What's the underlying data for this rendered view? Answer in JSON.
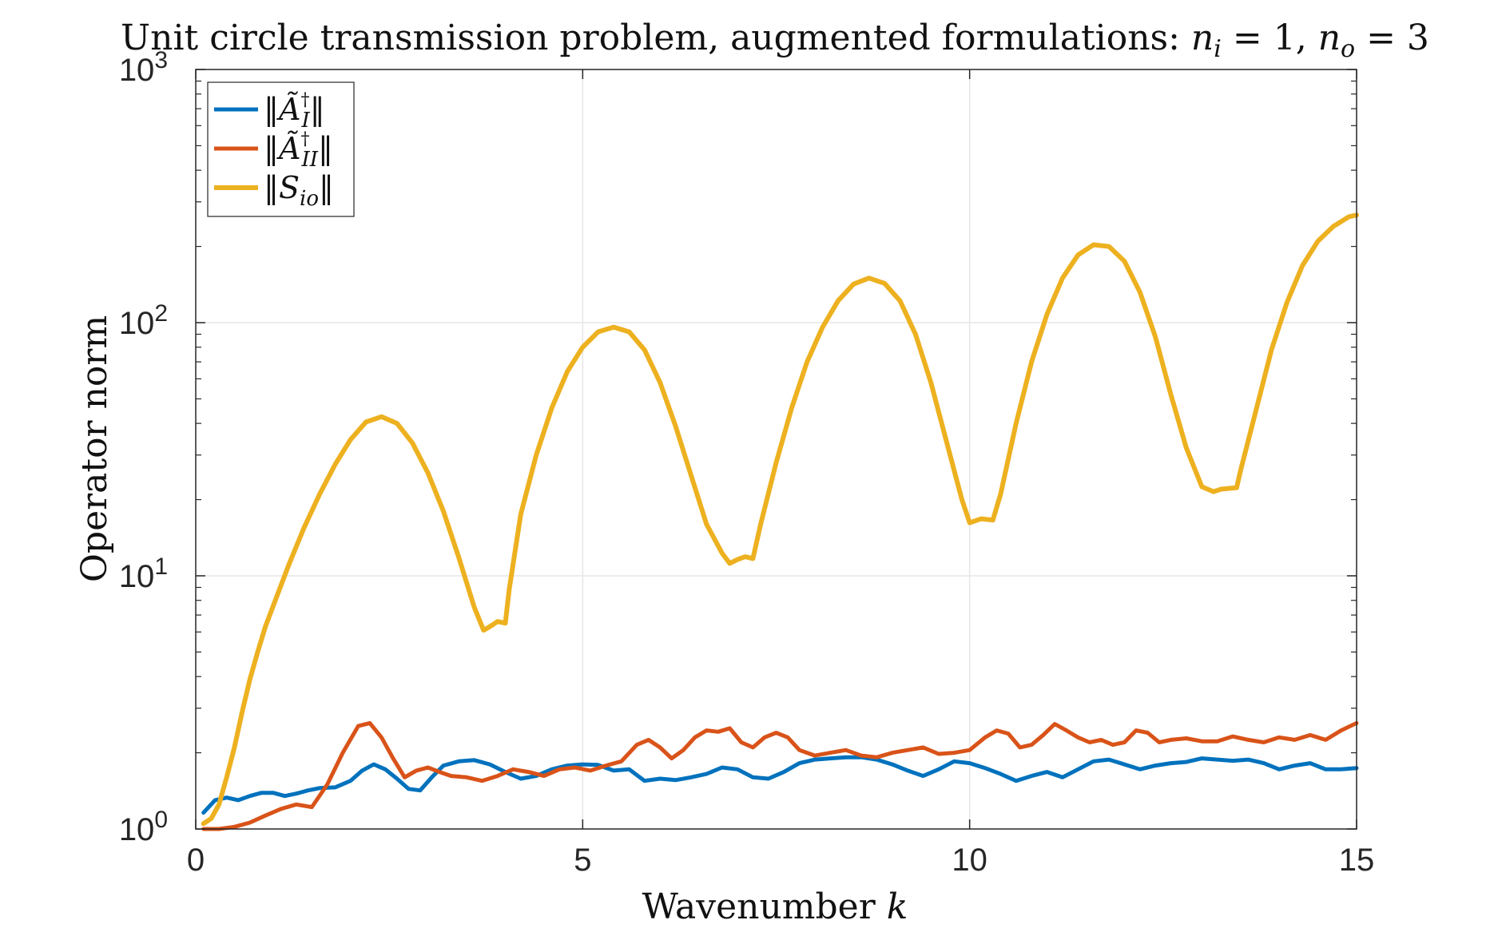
{
  "chart_data": {
    "type": "line",
    "title": "Unit circle transmission problem, augmented formulations: n_i = 1, n_o = 3",
    "title_parts": {
      "prefix": "Unit circle transmission problem, augmented formulations: ",
      "n_sym": "n",
      "sub_i": "i",
      "eq_one": " = 1, ",
      "sub_o": "o",
      "eq_three": " = 3"
    },
    "xlabel": "Wavenumber",
    "xlabel_var": "k",
    "ylabel": "Operator norm",
    "xlim": [
      0,
      15
    ],
    "ylim": [
      1,
      1000
    ],
    "yscale": "log",
    "grid": true,
    "legend_position": "top-left",
    "x_ticks": [
      {
        "value": 0,
        "label": "0"
      },
      {
        "value": 5,
        "label": "5"
      },
      {
        "value": 10,
        "label": "10"
      },
      {
        "value": 15,
        "label": "15"
      }
    ],
    "y_ticks": [
      {
        "value": 1,
        "base": "10",
        "exp": "0"
      },
      {
        "value": 10,
        "base": "10",
        "exp": "1"
      },
      {
        "value": 100,
        "base": "10",
        "exp": "2"
      },
      {
        "value": 1000,
        "base": "10",
        "exp": "3"
      }
    ],
    "series": [
      {
        "name": "‖Ã_I^†‖",
        "legend": {
          "left": "‖",
          "base": "Ã",
          "sup": "†",
          "sub": "I",
          "right": "‖"
        },
        "color": "#0072BD",
        "x": [
          0.1,
          0.25,
          0.4,
          0.55,
          0.7,
          0.85,
          1.0,
          1.15,
          1.3,
          1.45,
          1.6,
          1.8,
          2.0,
          2.15,
          2.3,
          2.45,
          2.6,
          2.75,
          2.9,
          3.05,
          3.2,
          3.4,
          3.6,
          3.8,
          4.0,
          4.2,
          4.4,
          4.6,
          4.8,
          5.0,
          5.2,
          5.4,
          5.6,
          5.8,
          6.0,
          6.2,
          6.4,
          6.6,
          6.8,
          7.0,
          7.2,
          7.4,
          7.6,
          7.8,
          8.0,
          8.2,
          8.4,
          8.6,
          8.8,
          9.0,
          9.2,
          9.4,
          9.6,
          9.8,
          10.0,
          10.2,
          10.4,
          10.6,
          10.8,
          11.0,
          11.2,
          11.4,
          11.6,
          11.8,
          12.0,
          12.2,
          12.4,
          12.6,
          12.8,
          13.0,
          13.2,
          13.4,
          13.6,
          13.8,
          14.0,
          14.2,
          14.4,
          14.6,
          14.8,
          15.0
        ],
        "y": [
          1.16,
          1.3,
          1.33,
          1.3,
          1.35,
          1.39,
          1.39,
          1.35,
          1.38,
          1.42,
          1.45,
          1.46,
          1.55,
          1.7,
          1.8,
          1.72,
          1.58,
          1.44,
          1.42,
          1.6,
          1.78,
          1.85,
          1.87,
          1.8,
          1.68,
          1.58,
          1.62,
          1.72,
          1.78,
          1.8,
          1.79,
          1.7,
          1.72,
          1.55,
          1.58,
          1.56,
          1.6,
          1.65,
          1.75,
          1.72,
          1.6,
          1.58,
          1.68,
          1.82,
          1.88,
          1.9,
          1.92,
          1.92,
          1.88,
          1.8,
          1.7,
          1.62,
          1.72,
          1.85,
          1.82,
          1.74,
          1.65,
          1.55,
          1.62,
          1.68,
          1.6,
          1.72,
          1.85,
          1.88,
          1.8,
          1.72,
          1.78,
          1.82,
          1.84,
          1.9,
          1.88,
          1.86,
          1.88,
          1.82,
          1.72,
          1.78,
          1.82,
          1.72,
          1.72,
          1.74
        ]
      },
      {
        "name": "‖Ã_II^†‖",
        "legend": {
          "left": "‖",
          "base": "Ã",
          "sup": "†",
          "sub": "II",
          "right": "‖"
        },
        "color": "#D95319",
        "x": [
          0.1,
          0.3,
          0.5,
          0.7,
          0.9,
          1.1,
          1.3,
          1.5,
          1.7,
          1.9,
          2.1,
          2.25,
          2.4,
          2.55,
          2.7,
          2.85,
          3.0,
          3.15,
          3.3,
          3.5,
          3.7,
          3.9,
          4.1,
          4.3,
          4.5,
          4.7,
          4.9,
          5.1,
          5.3,
          5.5,
          5.7,
          5.85,
          6.0,
          6.15,
          6.3,
          6.45,
          6.6,
          6.75,
          6.9,
          7.05,
          7.2,
          7.35,
          7.5,
          7.65,
          7.8,
          8.0,
          8.2,
          8.4,
          8.6,
          8.8,
          9.0,
          9.2,
          9.4,
          9.6,
          9.8,
          10.0,
          10.2,
          10.35,
          10.5,
          10.65,
          10.8,
          10.95,
          11.1,
          11.25,
          11.4,
          11.55,
          11.7,
          11.85,
          12.0,
          12.15,
          12.3,
          12.45,
          12.6,
          12.8,
          13.0,
          13.2,
          13.4,
          13.6,
          13.8,
          14.0,
          14.2,
          14.4,
          14.6,
          14.8,
          15.0
        ],
        "y": [
          1.0,
          1.0,
          1.02,
          1.06,
          1.13,
          1.2,
          1.25,
          1.22,
          1.5,
          2.0,
          2.55,
          2.62,
          2.3,
          1.9,
          1.6,
          1.7,
          1.75,
          1.68,
          1.62,
          1.6,
          1.55,
          1.62,
          1.72,
          1.68,
          1.62,
          1.72,
          1.75,
          1.7,
          1.78,
          1.85,
          2.15,
          2.25,
          2.1,
          1.9,
          2.05,
          2.3,
          2.45,
          2.42,
          2.5,
          2.2,
          2.1,
          2.3,
          2.4,
          2.3,
          2.05,
          1.95,
          2.0,
          2.05,
          1.95,
          1.92,
          2.0,
          2.05,
          2.1,
          1.98,
          2.0,
          2.05,
          2.3,
          2.45,
          2.38,
          2.1,
          2.15,
          2.35,
          2.6,
          2.45,
          2.3,
          2.2,
          2.25,
          2.15,
          2.2,
          2.45,
          2.4,
          2.2,
          2.25,
          2.28,
          2.22,
          2.22,
          2.32,
          2.25,
          2.2,
          2.3,
          2.25,
          2.35,
          2.25,
          2.45,
          2.62
        ]
      },
      {
        "name": "‖S_io‖",
        "legend": {
          "left": "‖",
          "base": "S",
          "sup": "",
          "sub": "io",
          "right": "‖"
        },
        "color": "#EDB120",
        "x": [
          0.1,
          0.2,
          0.3,
          0.4,
          0.5,
          0.6,
          0.7,
          0.8,
          0.9,
          1.0,
          1.2,
          1.4,
          1.6,
          1.8,
          2.0,
          2.2,
          2.4,
          2.6,
          2.8,
          3.0,
          3.2,
          3.4,
          3.6,
          3.72,
          3.8,
          3.9,
          4.0,
          4.05,
          4.2,
          4.4,
          4.6,
          4.8,
          5.0,
          5.2,
          5.4,
          5.6,
          5.8,
          6.0,
          6.2,
          6.4,
          6.6,
          6.8,
          6.9,
          7.0,
          7.1,
          7.2,
          7.3,
          7.5,
          7.7,
          7.9,
          8.1,
          8.3,
          8.5,
          8.7,
          8.9,
          9.1,
          9.3,
          9.5,
          9.7,
          9.9,
          10.0,
          10.15,
          10.3,
          10.4,
          10.6,
          10.8,
          11.0,
          11.2,
          11.4,
          11.6,
          11.8,
          12.0,
          12.2,
          12.4,
          12.6,
          12.8,
          13.0,
          13.15,
          13.25,
          13.45,
          13.5,
          13.7,
          13.9,
          14.1,
          14.3,
          14.5,
          14.7,
          14.9,
          15.0
        ],
        "y": [
          1.05,
          1.1,
          1.25,
          1.6,
          2.1,
          2.9,
          3.9,
          5.0,
          6.3,
          7.6,
          11.0,
          15.5,
          21.0,
          27.5,
          34.5,
          40.5,
          42.5,
          40.0,
          33.5,
          25.5,
          18.0,
          11.8,
          7.5,
          6.1,
          6.3,
          6.6,
          6.5,
          8.8,
          17.5,
          30.0,
          46.0,
          64.0,
          80.0,
          92.0,
          96.0,
          92.0,
          78.0,
          58.0,
          39.0,
          25.0,
          16.0,
          12.3,
          11.2,
          11.6,
          11.9,
          11.7,
          16.0,
          28.0,
          46.0,
          70.0,
          96.0,
          122.0,
          142.0,
          150.0,
          143.0,
          122.0,
          90.0,
          58.0,
          34.0,
          20.0,
          16.2,
          16.8,
          16.6,
          21.0,
          40.0,
          70.0,
          108.0,
          150.0,
          185.0,
          203.0,
          200.0,
          175.0,
          132.0,
          88.0,
          52.0,
          32.0,
          22.5,
          21.5,
          22.0,
          22.3,
          26.0,
          45.0,
          78.0,
          120.0,
          168.0,
          210.0,
          240.0,
          262.0,
          266.0
        ]
      }
    ]
  }
}
